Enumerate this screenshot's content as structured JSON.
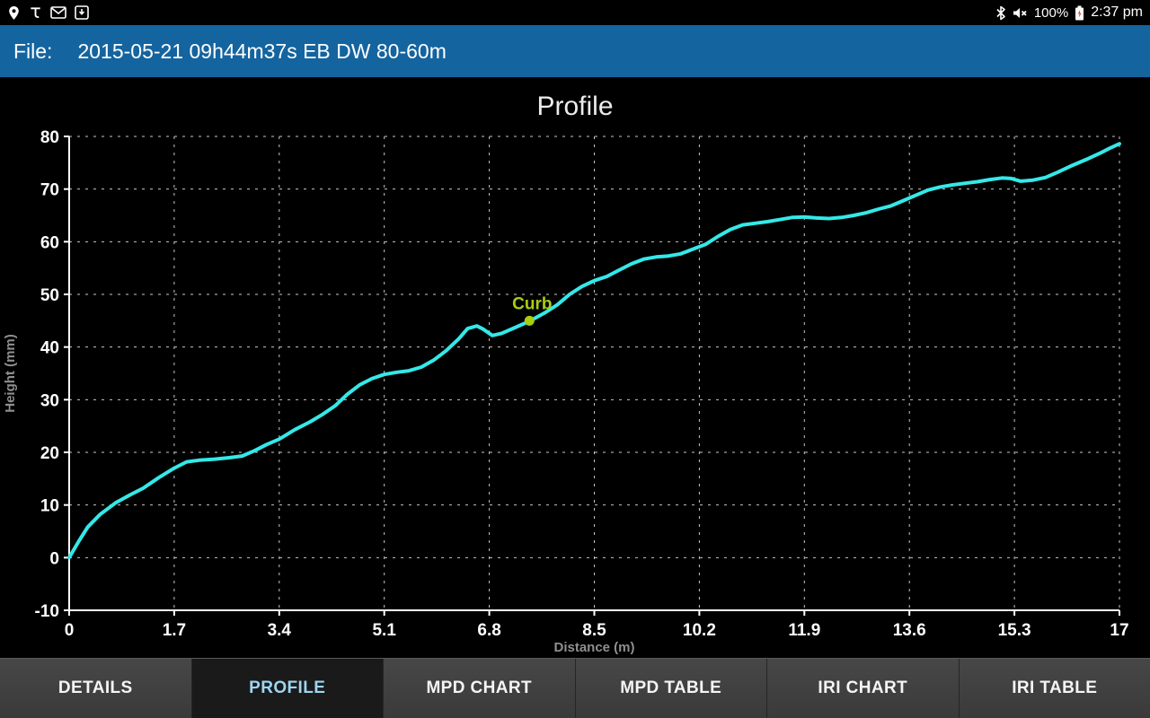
{
  "status_bar": {
    "time": "2:37 pm",
    "battery_percent": "100%",
    "icons_left": [
      "location-icon",
      "t-app-icon",
      "mail-icon",
      "screenshot-icon"
    ],
    "icons_right": [
      "bluetooth-icon",
      "volume-muted-icon",
      "battery-icon"
    ]
  },
  "header": {
    "file_label": "File:",
    "file_name": "2015-05-21 09h44m37s EB DW 80-60m"
  },
  "tabs": {
    "items": [
      {
        "label": "DETAILS",
        "active": false
      },
      {
        "label": "PROFILE",
        "active": true
      },
      {
        "label": "MPD CHART",
        "active": false
      },
      {
        "label": "MPD TABLE",
        "active": false
      },
      {
        "label": "IRI CHART",
        "active": false
      },
      {
        "label": "IRI TABLE",
        "active": false
      }
    ]
  },
  "theme": {
    "header_bg": "#14649f",
    "tab_bg": "#3f3f3f",
    "tab_active_bg": "#1a1a1a",
    "tab_active_text": "#9ed5f0"
  },
  "chart_data": {
    "type": "line",
    "title": "Profile",
    "xlabel": "Distance (m)",
    "ylabel": "Height (mm)",
    "xlim": [
      0,
      17
    ],
    "ylim": [
      -10,
      80
    ],
    "x_ticks": [
      0,
      1.7,
      3.4,
      5.1,
      6.8,
      8.5,
      10.2,
      11.9,
      13.6,
      15.3,
      17
    ],
    "x_tick_labels": [
      "0",
      "1.7",
      "3.4",
      "5.1",
      "6.8",
      "8.5",
      "10.2",
      "11.9",
      "13.6",
      "15.3",
      "17"
    ],
    "y_ticks": [
      -10,
      0,
      10,
      20,
      30,
      40,
      50,
      60,
      70,
      80
    ],
    "y_tick_labels": [
      "-10",
      "0",
      "10",
      "20",
      "30",
      "40",
      "50",
      "60",
      "70",
      "80"
    ],
    "grid": "dashed",
    "grid_color": "#c8c8c8",
    "background": "#000000",
    "series": [
      {
        "name": "Profile",
        "color": "#35e8e8",
        "points": [
          [
            0,
            0
          ],
          [
            0.15,
            3
          ],
          [
            0.3,
            5.8
          ],
          [
            0.5,
            8.2
          ],
          [
            0.75,
            10.4
          ],
          [
            1,
            12
          ],
          [
            1.2,
            13.2
          ],
          [
            1.45,
            15.2
          ],
          [
            1.7,
            17
          ],
          [
            1.9,
            18.2
          ],
          [
            2.1,
            18.5
          ],
          [
            2.35,
            18.7
          ],
          [
            2.6,
            19
          ],
          [
            2.8,
            19.3
          ],
          [
            3,
            20.3
          ],
          [
            3.2,
            21.5
          ],
          [
            3.4,
            22.5
          ],
          [
            3.65,
            24.3
          ],
          [
            3.9,
            25.8
          ],
          [
            4.1,
            27.2
          ],
          [
            4.3,
            28.8
          ],
          [
            4.5,
            31
          ],
          [
            4.7,
            32.8
          ],
          [
            4.9,
            34
          ],
          [
            5.1,
            34.8
          ],
          [
            5.3,
            35.2
          ],
          [
            5.5,
            35.5
          ],
          [
            5.7,
            36.2
          ],
          [
            5.9,
            37.5
          ],
          [
            6.1,
            39.3
          ],
          [
            6.3,
            41.5
          ],
          [
            6.45,
            43.5
          ],
          [
            6.6,
            44
          ],
          [
            6.7,
            43.4
          ],
          [
            6.85,
            42.2
          ],
          [
            7,
            42.6
          ],
          [
            7.2,
            43.6
          ],
          [
            7.45,
            44.9
          ],
          [
            7.7,
            46.5
          ],
          [
            7.9,
            48
          ],
          [
            8.1,
            50
          ],
          [
            8.3,
            51.5
          ],
          [
            8.5,
            52.6
          ],
          [
            8.7,
            53.4
          ],
          [
            8.9,
            54.6
          ],
          [
            9.1,
            55.8
          ],
          [
            9.3,
            56.7
          ],
          [
            9.5,
            57.1
          ],
          [
            9.7,
            57.3
          ],
          [
            9.9,
            57.7
          ],
          [
            10.1,
            58.6
          ],
          [
            10.3,
            59.5
          ],
          [
            10.5,
            61
          ],
          [
            10.7,
            62.3
          ],
          [
            10.9,
            63.2
          ],
          [
            11.1,
            63.5
          ],
          [
            11.3,
            63.8
          ],
          [
            11.5,
            64.2
          ],
          [
            11.7,
            64.6
          ],
          [
            11.9,
            64.7
          ],
          [
            12.1,
            64.5
          ],
          [
            12.3,
            64.4
          ],
          [
            12.5,
            64.6
          ],
          [
            12.7,
            65
          ],
          [
            12.9,
            65.5
          ],
          [
            13.1,
            66.2
          ],
          [
            13.3,
            66.8
          ],
          [
            13.5,
            67.8
          ],
          [
            13.7,
            68.8
          ],
          [
            13.9,
            69.8
          ],
          [
            14.1,
            70.4
          ],
          [
            14.3,
            70.8
          ],
          [
            14.5,
            71.1
          ],
          [
            14.7,
            71.4
          ],
          [
            14.9,
            71.8
          ],
          [
            15.1,
            72.1
          ],
          [
            15.25,
            72
          ],
          [
            15.4,
            71.5
          ],
          [
            15.6,
            71.7
          ],
          [
            15.8,
            72.2
          ],
          [
            16,
            73.2
          ],
          [
            16.2,
            74.3
          ],
          [
            16.5,
            75.8
          ],
          [
            16.7,
            76.9
          ],
          [
            16.85,
            77.8
          ],
          [
            17,
            78.6
          ]
        ]
      }
    ],
    "annotations": [
      {
        "label": "Curb",
        "x": 7.45,
        "y": 45,
        "color": "#a9ce10"
      }
    ]
  }
}
